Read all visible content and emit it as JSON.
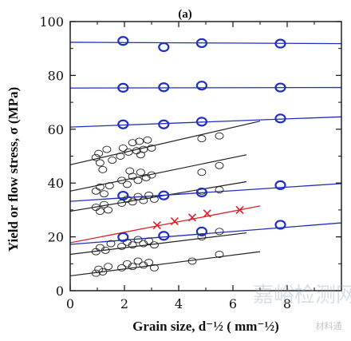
{
  "chart_data": {
    "type": "scatter",
    "panel_label": "(a)",
    "ylabel": "Yield or flow stress, σ (MPa)",
    "xlabel": "Grain size, d⁻½ ( mm⁻½)",
    "xlim": [
      0,
      10
    ],
    "ylim": [
      0,
      100
    ],
    "xticks": [
      0,
      2,
      4,
      6,
      8
    ],
    "yticks": [
      0,
      20,
      40,
      60,
      80,
      100
    ],
    "grid": false,
    "colors": {
      "black": "#222222",
      "blue": "#1f2fbf",
      "red": "#e0202a",
      "axis": "#111111"
    },
    "blue_circles": [
      {
        "x": 1.95,
        "y": 92.8
      },
      {
        "x": 3.45,
        "y": 90.5
      },
      {
        "x": 4.85,
        "y": 92.0
      },
      {
        "x": 7.75,
        "y": 91.8
      },
      {
        "x": 1.95,
        "y": 75.4
      },
      {
        "x": 3.45,
        "y": 75.6
      },
      {
        "x": 4.85,
        "y": 76.2
      },
      {
        "x": 7.75,
        "y": 75.5
      },
      {
        "x": 1.95,
        "y": 61.8
      },
      {
        "x": 3.45,
        "y": 61.8
      },
      {
        "x": 4.85,
        "y": 62.8
      },
      {
        "x": 7.75,
        "y": 64.0
      },
      {
        "x": 1.95,
        "y": 35.3
      },
      {
        "x": 3.45,
        "y": 35.4
      },
      {
        "x": 4.85,
        "y": 36.5
      },
      {
        "x": 7.75,
        "y": 39.2
      },
      {
        "x": 1.95,
        "y": 19.9
      },
      {
        "x": 3.45,
        "y": 20.4
      },
      {
        "x": 4.85,
        "y": 22.0
      },
      {
        "x": 7.75,
        "y": 24.5
      }
    ],
    "red_crosses": [
      {
        "x": 3.2,
        "y": 24.3
      },
      {
        "x": 3.85,
        "y": 25.8
      },
      {
        "x": 4.5,
        "y": 27.2
      },
      {
        "x": 5.05,
        "y": 28.7
      },
      {
        "x": 6.25,
        "y": 30.0
      }
    ],
    "black_circles": [
      {
        "x": 0.95,
        "y": 49.5
      },
      {
        "x": 1.05,
        "y": 51.0
      },
      {
        "x": 1.1,
        "y": 47.5
      },
      {
        "x": 1.2,
        "y": 45.0
      },
      {
        "x": 1.35,
        "y": 52.5
      },
      {
        "x": 1.55,
        "y": 48.5
      },
      {
        "x": 1.95,
        "y": 53.0
      },
      {
        "x": 2.15,
        "y": 51.5
      },
      {
        "x": 2.3,
        "y": 55.0
      },
      {
        "x": 2.45,
        "y": 52.0
      },
      {
        "x": 2.55,
        "y": 55.5
      },
      {
        "x": 2.7,
        "y": 52.5
      },
      {
        "x": 2.85,
        "y": 56.0
      },
      {
        "x": 3.0,
        "y": 53.0
      },
      {
        "x": 1.85,
        "y": 50.0
      },
      {
        "x": 2.6,
        "y": 50.5
      },
      {
        "x": 4.85,
        "y": 56.5
      },
      {
        "x": 5.5,
        "y": 57.5
      },
      {
        "x": 0.95,
        "y": 37.0
      },
      {
        "x": 1.1,
        "y": 38.5
      },
      {
        "x": 1.25,
        "y": 36.0
      },
      {
        "x": 1.45,
        "y": 39.0
      },
      {
        "x": 1.9,
        "y": 41.0
      },
      {
        "x": 2.1,
        "y": 39.5
      },
      {
        "x": 2.3,
        "y": 42.5
      },
      {
        "x": 2.5,
        "y": 41.0
      },
      {
        "x": 2.6,
        "y": 44.0
      },
      {
        "x": 2.8,
        "y": 42.0
      },
      {
        "x": 3.0,
        "y": 43.0
      },
      {
        "x": 2.2,
        "y": 44.5
      },
      {
        "x": 4.85,
        "y": 44.0
      },
      {
        "x": 5.5,
        "y": 46.5
      },
      {
        "x": 0.95,
        "y": 31.0
      },
      {
        "x": 1.1,
        "y": 29.5
      },
      {
        "x": 1.25,
        "y": 32.0
      },
      {
        "x": 1.4,
        "y": 30.0
      },
      {
        "x": 1.9,
        "y": 32.5
      },
      {
        "x": 2.1,
        "y": 34.0
      },
      {
        "x": 2.3,
        "y": 33.0
      },
      {
        "x": 2.5,
        "y": 35.0
      },
      {
        "x": 2.7,
        "y": 33.5
      },
      {
        "x": 2.9,
        "y": 35.5
      },
      {
        "x": 3.1,
        "y": 34.0
      },
      {
        "x": 4.85,
        "y": 37.0
      },
      {
        "x": 5.5,
        "y": 37.5
      },
      {
        "x": 0.95,
        "y": 14.5
      },
      {
        "x": 1.1,
        "y": 16.0
      },
      {
        "x": 1.3,
        "y": 15.0
      },
      {
        "x": 1.5,
        "y": 17.5
      },
      {
        "x": 1.9,
        "y": 16.5
      },
      {
        "x": 2.1,
        "y": 18.0
      },
      {
        "x": 2.3,
        "y": 17.0
      },
      {
        "x": 2.5,
        "y": 19.0
      },
      {
        "x": 2.7,
        "y": 17.5
      },
      {
        "x": 2.9,
        "y": 18.5
      },
      {
        "x": 3.1,
        "y": 17.0
      },
      {
        "x": 4.85,
        "y": 20.0
      },
      {
        "x": 5.5,
        "y": 22.0
      },
      {
        "x": 0.95,
        "y": 6.5
      },
      {
        "x": 1.05,
        "y": 8.0
      },
      {
        "x": 1.2,
        "y": 7.0
      },
      {
        "x": 1.4,
        "y": 9.0
      },
      {
        "x": 1.9,
        "y": 8.5
      },
      {
        "x": 2.1,
        "y": 10.0
      },
      {
        "x": 2.3,
        "y": 9.0
      },
      {
        "x": 2.5,
        "y": 11.0
      },
      {
        "x": 2.7,
        "y": 9.5
      },
      {
        "x": 2.9,
        "y": 10.5
      },
      {
        "x": 3.1,
        "y": 8.5
      },
      {
        "x": 4.5,
        "y": 11.0
      },
      {
        "x": 5.5,
        "y": 13.5
      }
    ],
    "fit_lines": [
      {
        "color": "black",
        "x": [
          0,
          7.0
        ],
        "y": [
          46.8,
          63.0
        ]
      },
      {
        "color": "black",
        "x": [
          0,
          6.5
        ],
        "y": [
          37.0,
          50.5
        ]
      },
      {
        "color": "black",
        "x": [
          0,
          6.5
        ],
        "y": [
          29.5,
          40.5
        ]
      },
      {
        "color": "black",
        "x": [
          0,
          6.5
        ],
        "y": [
          13.5,
          21.5
        ]
      },
      {
        "color": "black",
        "x": [
          0,
          7.0
        ],
        "y": [
          5.5,
          14.5
        ]
      },
      {
        "color": "red",
        "x": [
          0,
          7.0
        ],
        "y": [
          17.8,
          31.5
        ]
      },
      {
        "color": "blue",
        "x": [
          0,
          10
        ],
        "y": [
          92.3,
          91.8
        ]
      },
      {
        "color": "blue",
        "x": [
          0,
          10
        ],
        "y": [
          75.3,
          75.5
        ]
      },
      {
        "color": "blue",
        "x": [
          0,
          10
        ],
        "y": [
          60.8,
          64.6
        ]
      },
      {
        "color": "blue",
        "x": [
          0,
          10
        ],
        "y": [
          33.2,
          39.8
        ]
      },
      {
        "color": "blue",
        "x": [
          0,
          10
        ],
        "y": [
          17.2,
          25.2
        ]
      }
    ]
  },
  "watermark": {
    "text": "嘉峪检测网",
    "sub": "材料通"
  }
}
